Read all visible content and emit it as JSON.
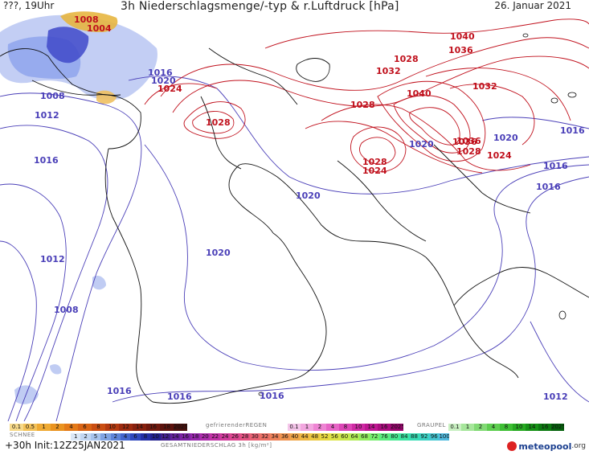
{
  "header": {
    "valid_time": "???, 19Uhr",
    "title": "3h Niederschlagsmenge/-typ & r.Luftdruck [hPa]",
    "date": "26. Januar 2021"
  },
  "isobar_labels": {
    "red": [
      "1008",
      "1004",
      "1024",
      "1028",
      "1028",
      "1028",
      "1024",
      "1040",
      "1036",
      "1032",
      "1028",
      "1040",
      "1036",
      "1032",
      "1036",
      "1028",
      "1024"
    ],
    "blue": [
      "1016",
      "1020",
      "1008",
      "1012",
      "1016",
      "1012",
      "1008",
      "1020",
      "1020",
      "1020",
      "1020",
      "1016",
      "1016",
      "1016",
      "1016",
      "1016",
      "1012"
    ]
  },
  "legend": {
    "snow_label": "SCHNEE",
    "snow_classes": [
      "0.1",
      "0.5",
      "1",
      "2",
      "4",
      "6",
      "8",
      "10",
      "12",
      "14",
      "16",
      "18",
      "2025+"
    ],
    "freezing_label": "gefrierenderREGEN",
    "freezing_classes": [
      "0.1",
      "1",
      "2",
      "4",
      "8",
      "10",
      "14",
      "16",
      "2025+"
    ],
    "graupel_label": "GRAUPEL",
    "graupel_classes": [
      "0.1",
      "1",
      "2",
      "4",
      "8",
      "10",
      "14",
      "16",
      "2025+"
    ],
    "total_label": "GESAMTNIEDERSCHLAG 3h [kg/m²]",
    "total_classes": [
      "1",
      "2",
      "5",
      "1",
      "2",
      "4",
      "6",
      "8",
      "10",
      "12",
      "14",
      "16",
      "18",
      "20",
      "22",
      "24",
      "26",
      "28",
      "30",
      "32",
      "34",
      "36",
      "40",
      "44",
      "48",
      "52",
      "56",
      "60",
      "64",
      "68",
      "72",
      "76",
      "80",
      "84",
      "88",
      "92",
      "96",
      "100"
    ]
  },
  "footer": {
    "init": "+30h Init:12Z25JAN2021",
    "brand": "meteopool",
    "brand_ext": ".org"
  },
  "colors": {
    "high_isobar": "#c0101c",
    "low_isobar": "#4a3fb8",
    "coastline": "#111111",
    "precip_blue": "#7f9be6",
    "precip_orange": "#e8a935"
  }
}
